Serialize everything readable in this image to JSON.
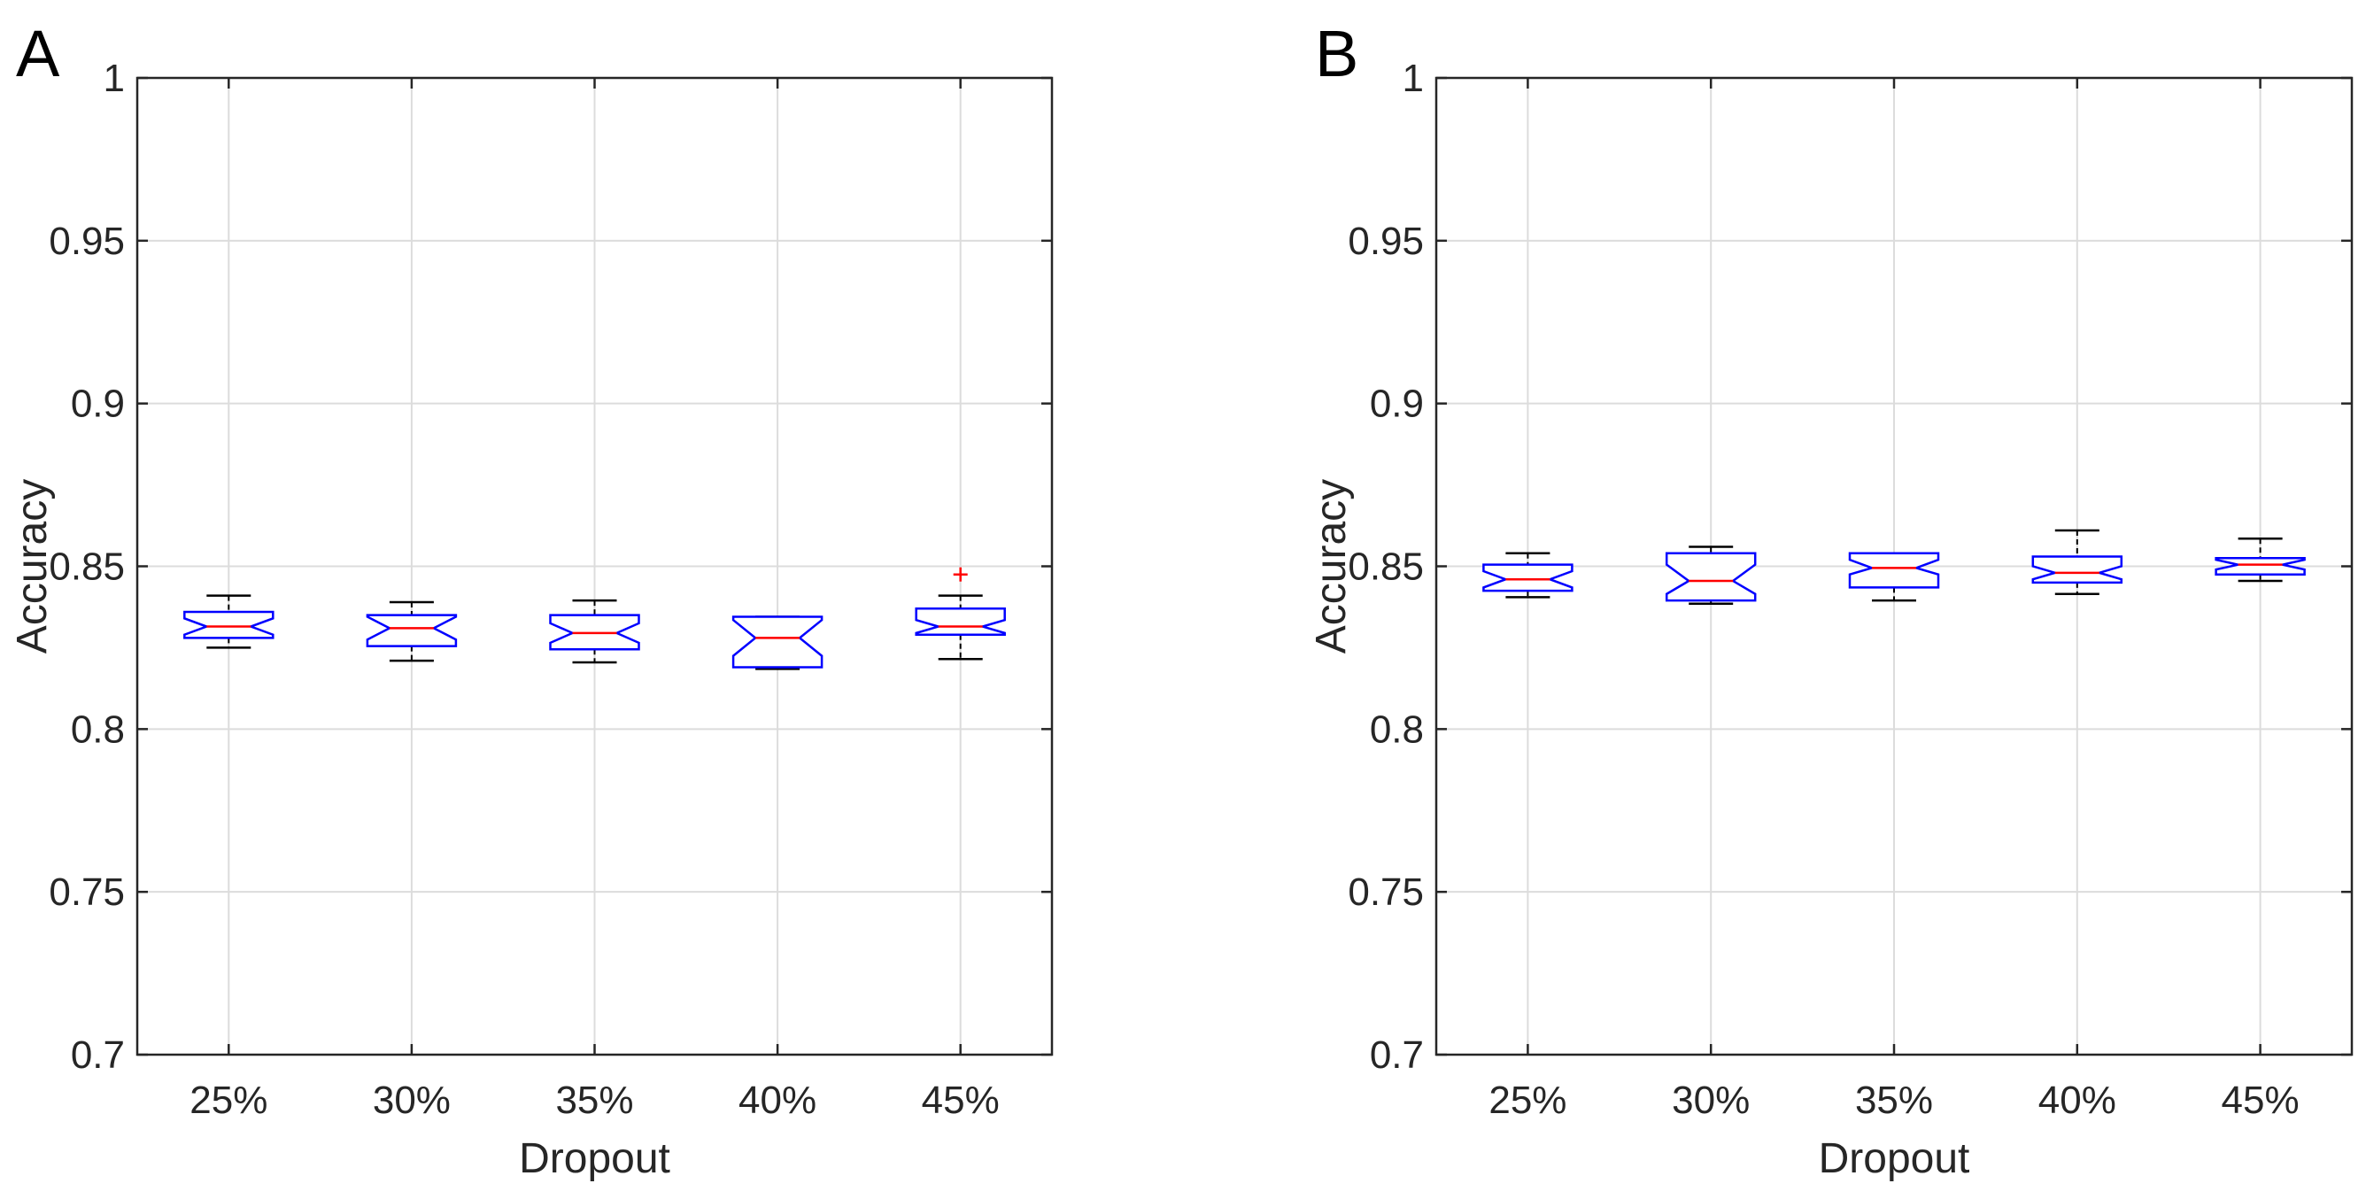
{
  "chart_data": [
    {
      "panel": "A",
      "type": "box",
      "title": "",
      "xlabel": "Dropout",
      "ylabel": "Accuracy",
      "ylim": [
        0.7,
        1
      ],
      "yticks": [
        "0.7",
        "0.75",
        "0.8",
        "0.85",
        "0.9",
        "0.95",
        "1"
      ],
      "grid": true,
      "categories": [
        "25%",
        "30%",
        "35%",
        "40%",
        "45%"
      ],
      "boxes": [
        {
          "whisker_low": 0.825,
          "q1": 0.828,
          "median": 0.8315,
          "q3": 0.836,
          "whisker_high": 0.841,
          "notch_low": 0.829,
          "notch_high": 0.834,
          "outliers": []
        },
        {
          "whisker_low": 0.821,
          "q1": 0.8255,
          "median": 0.831,
          "q3": 0.835,
          "whisker_high": 0.839,
          "notch_low": 0.8275,
          "notch_high": 0.8345,
          "outliers": []
        },
        {
          "whisker_low": 0.8205,
          "q1": 0.8245,
          "median": 0.8295,
          "q3": 0.835,
          "whisker_high": 0.8395,
          "notch_low": 0.8265,
          "notch_high": 0.8325,
          "outliers": []
        },
        {
          "whisker_low": 0.8185,
          "q1": 0.819,
          "median": 0.828,
          "q3": 0.8345,
          "whisker_high": 0.8345,
          "notch_low": 0.8225,
          "notch_high": 0.8335,
          "outliers": []
        },
        {
          "whisker_low": 0.8215,
          "q1": 0.829,
          "median": 0.8315,
          "q3": 0.837,
          "whisker_high": 0.841,
          "notch_low": 0.8295,
          "notch_high": 0.8335,
          "outliers": [
            0.8475
          ]
        }
      ]
    },
    {
      "panel": "B",
      "type": "box",
      "title": "",
      "xlabel": "Dropout",
      "ylabel": "Accuracy",
      "ylim": [
        0.7,
        1
      ],
      "yticks": [
        "0.7",
        "0.75",
        "0.8",
        "0.85",
        "0.9",
        "0.95",
        "1"
      ],
      "grid": true,
      "categories": [
        "25%",
        "30%",
        "35%",
        "40%",
        "45%"
      ],
      "boxes": [
        {
          "whisker_low": 0.8405,
          "q1": 0.8425,
          "median": 0.846,
          "q3": 0.8505,
          "whisker_high": 0.854,
          "notch_low": 0.8435,
          "notch_high": 0.8485,
          "outliers": []
        },
        {
          "whisker_low": 0.8385,
          "q1": 0.8395,
          "median": 0.8455,
          "q3": 0.854,
          "whisker_high": 0.856,
          "notch_low": 0.8415,
          "notch_high": 0.8505,
          "outliers": []
        },
        {
          "whisker_low": 0.8395,
          "q1": 0.8435,
          "median": 0.8495,
          "q3": 0.854,
          "whisker_high": 0.854,
          "notch_low": 0.8475,
          "notch_high": 0.852,
          "outliers": []
        },
        {
          "whisker_low": 0.8415,
          "q1": 0.845,
          "median": 0.848,
          "q3": 0.853,
          "whisker_high": 0.861,
          "notch_low": 0.846,
          "notch_high": 0.85,
          "outliers": []
        },
        {
          "whisker_low": 0.8455,
          "q1": 0.8475,
          "median": 0.8505,
          "q3": 0.8525,
          "whisker_high": 0.8585,
          "notch_low": 0.849,
          "notch_high": 0.852,
          "outliers": []
        }
      ]
    }
  ],
  "colors": {
    "box": "#0000ff",
    "median": "#ff0000",
    "whisker": "#000000",
    "outlier": "#ff0000",
    "grid": "#dcdcdc",
    "axis": "#262626"
  }
}
